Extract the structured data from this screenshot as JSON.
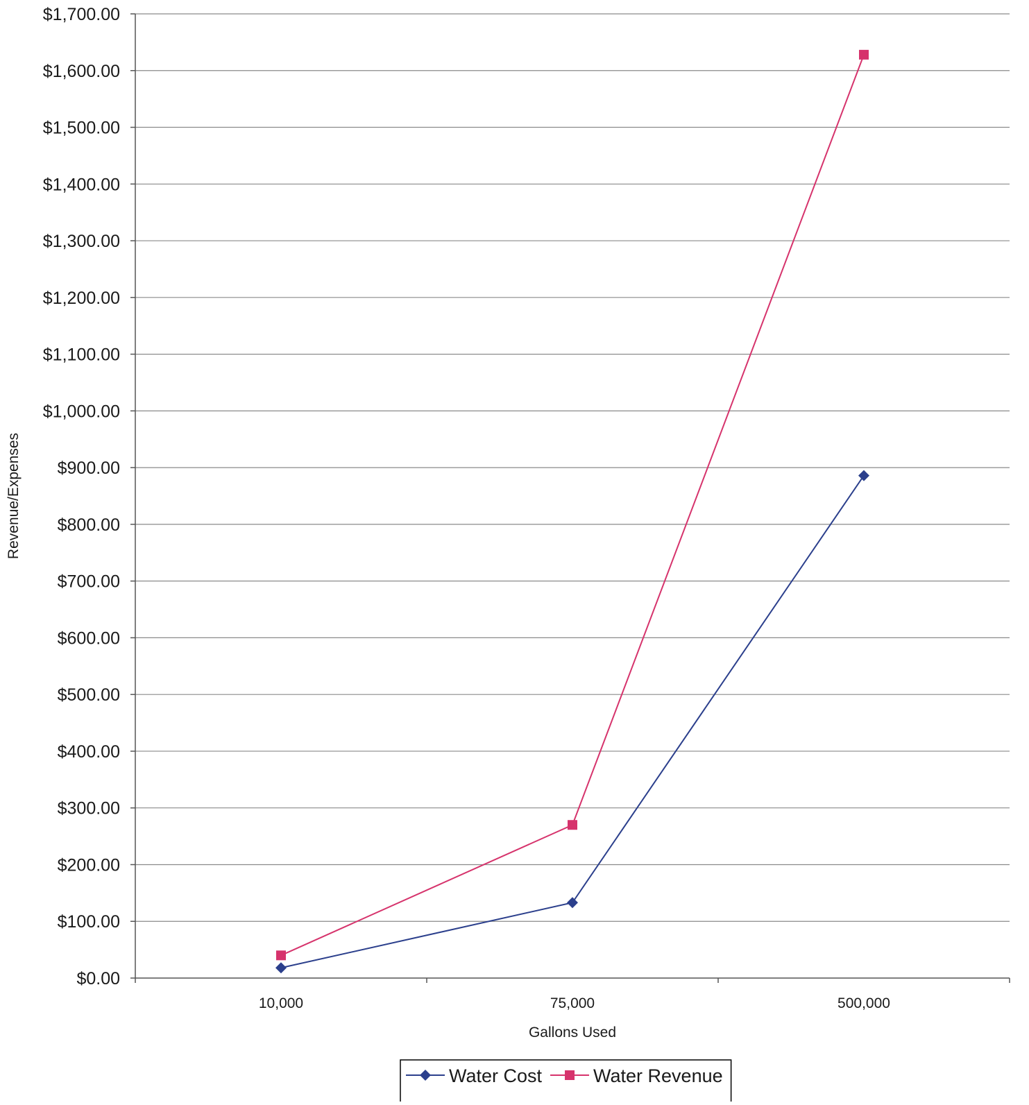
{
  "chart_data": {
    "type": "line",
    "xlabel": "Gallons Used",
    "ylabel": "Revenue/Expenses",
    "categories": [
      "10,000",
      "75,000",
      "500,000"
    ],
    "ylim": [
      0,
      1700
    ],
    "y_ticks": [
      0,
      100,
      200,
      300,
      400,
      500,
      600,
      700,
      800,
      900,
      1000,
      1100,
      1200,
      1300,
      1400,
      1500,
      1600,
      1700
    ],
    "y_tick_labels": [
      "$0.00",
      "$100.00",
      "$200.00",
      "$300.00",
      "$400.00",
      "$500.00",
      "$600.00",
      "$700.00",
      "$800.00",
      "$900.00",
      "$1,000.00",
      "$1,100.00",
      "$1,200.00",
      "$1,300.00",
      "$1,400.00",
      "$1,500.00",
      "$1,600.00",
      "$1,700.00"
    ],
    "grid": true,
    "legend_position": "bottom",
    "series": [
      {
        "name": "Water Cost",
        "values": [
          18,
          133,
          886
        ],
        "color": "#2b3f8c",
        "marker": "diamond"
      },
      {
        "name": "Water Revenue",
        "values": [
          40,
          270,
          1628
        ],
        "color": "#d6336c",
        "marker": "square"
      }
    ]
  }
}
